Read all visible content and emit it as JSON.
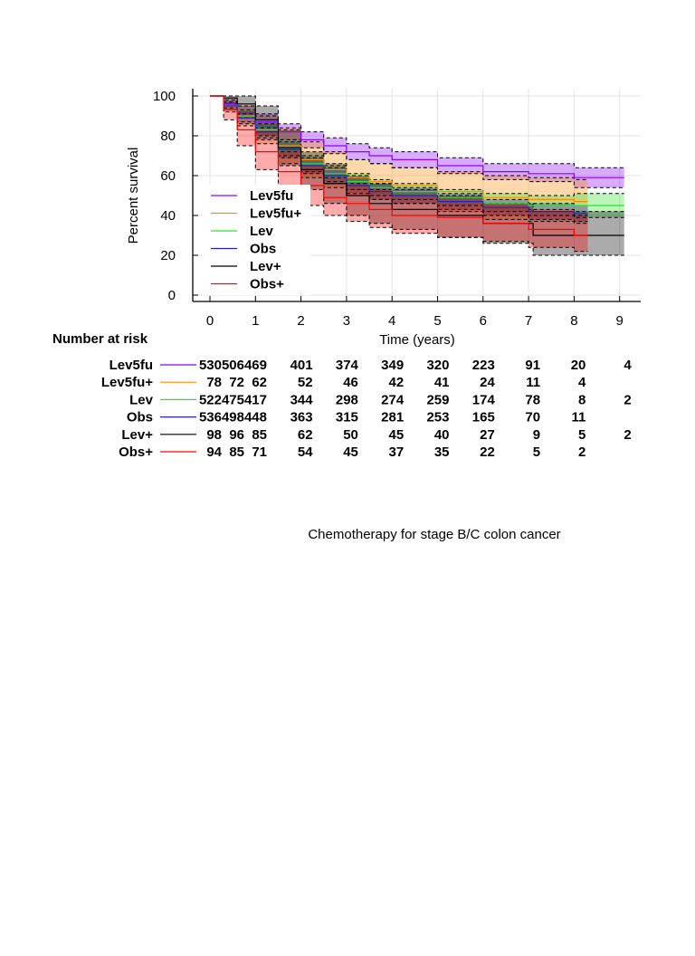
{
  "caption": "Chemotherapy for stage B/C colon cancer",
  "chart_data": {
    "type": "line",
    "subtype": "kaplan-meier",
    "xlabel": "Time (years)",
    "ylabel": "Percent survival",
    "xlim": [
      0,
      9
    ],
    "ylim": [
      0,
      100
    ],
    "x_ticks": [
      0,
      1,
      2,
      3,
      4,
      5,
      6,
      7,
      8,
      9
    ],
    "y_ticks": [
      0,
      20,
      40,
      60,
      80,
      100
    ],
    "grid": true,
    "legend_position": "lower-left",
    "series": [
      {
        "name": "Lev5fu",
        "color": "#8b00ff",
        "times": [
          0,
          0.3,
          0.6,
          1,
          1.5,
          2,
          2.5,
          3,
          3.5,
          4,
          5,
          6,
          7,
          8,
          9.1
        ],
        "values": [
          100,
          96,
          92,
          87,
          82,
          78,
          75,
          72,
          70,
          68,
          65,
          62,
          61,
          59,
          59
        ],
        "lower": [
          100,
          94,
          89,
          84,
          78,
          74,
          71,
          68,
          66,
          64,
          61,
          58,
          57,
          54,
          54
        ],
        "upper": [
          100,
          98,
          95,
          91,
          86,
          82,
          79,
          76,
          74,
          72,
          69,
          66,
          66,
          64,
          64
        ]
      },
      {
        "name": "Lev5fu+",
        "color": "#ff8c00",
        "times": [
          0,
          0.3,
          0.6,
          1,
          1.5,
          2,
          2.5,
          3,
          3.5,
          4,
          5,
          6,
          7,
          8,
          8.3
        ],
        "values": [
          100,
          95,
          90,
          83,
          75,
          68,
          63,
          59,
          57,
          55,
          52,
          49,
          48,
          47,
          47
        ],
        "lower": [
          100,
          92,
          85,
          76,
          66,
          59,
          54,
          50,
          48,
          46,
          42,
          38,
          37,
          36,
          36
        ],
        "upper": [
          100,
          99,
          95,
          90,
          84,
          77,
          72,
          68,
          66,
          64,
          62,
          60,
          59,
          58,
          58
        ]
      },
      {
        "name": "Lev",
        "color": "#33dd33",
        "times": [
          0,
          0.3,
          0.6,
          1,
          1.5,
          2,
          2.5,
          3,
          3.5,
          4,
          5,
          6,
          7,
          8,
          9.1
        ],
        "values": [
          100,
          95,
          90,
          83,
          74,
          66,
          61,
          57,
          54,
          52,
          49,
          46,
          45,
          45,
          45
        ],
        "lower": [
          100,
          93,
          87,
          79,
          70,
          62,
          57,
          53,
          50,
          48,
          45,
          42,
          40,
          39,
          39
        ],
        "upper": [
          100,
          97,
          93,
          87,
          78,
          70,
          65,
          61,
          58,
          56,
          53,
          51,
          50,
          51,
          51
        ]
      },
      {
        "name": "Obs",
        "color": "#2222cc",
        "times": [
          0,
          0.3,
          0.6,
          1,
          1.5,
          2,
          2.5,
          3,
          3.5,
          4,
          5,
          6,
          7,
          8,
          8.3
        ],
        "values": [
          100,
          95,
          89,
          82,
          73,
          65,
          60,
          55,
          52,
          50,
          47,
          44,
          42,
          41,
          41
        ],
        "lower": [
          100,
          93,
          86,
          78,
          69,
          61,
          56,
          51,
          48,
          46,
          43,
          40,
          38,
          37,
          37
        ],
        "upper": [
          100,
          97,
          92,
          86,
          77,
          69,
          64,
          59,
          56,
          54,
          51,
          48,
          46,
          45,
          45
        ]
      },
      {
        "name": "Lev+",
        "color": "#000000",
        "times": [
          0,
          0.3,
          0.6,
          1,
          1.5,
          2,
          2.5,
          3,
          3.5,
          4,
          5,
          6,
          7.1,
          8,
          9.1
        ],
        "values": [
          100,
          99,
          96,
          88,
          74,
          63,
          56,
          50,
          46,
          43,
          40,
          36,
          30,
          30,
          30
        ],
        "lower": [
          100,
          96,
          90,
          80,
          65,
          53,
          46,
          40,
          36,
          33,
          29,
          26,
          20,
          20,
          20
        ],
        "upper": [
          100,
          100,
          100,
          95,
          83,
          72,
          66,
          60,
          56,
          53,
          50,
          46,
          42,
          42,
          42
        ]
      },
      {
        "name": "Obs+",
        "color": "#ff0000",
        "times": [
          0,
          0.3,
          0.6,
          1,
          1.5,
          2,
          2.5,
          3,
          3.5,
          4,
          5,
          6,
          7,
          8,
          8.3
        ],
        "values": [
          100,
          93,
          83,
          72,
          62,
          55,
          49,
          46,
          43,
          40,
          39,
          36,
          33,
          30,
          30
        ],
        "lower": [
          100,
          88,
          75,
          63,
          53,
          45,
          40,
          37,
          34,
          31,
          29,
          27,
          24,
          22,
          22
        ],
        "upper": [
          100,
          97,
          91,
          82,
          72,
          65,
          59,
          56,
          53,
          50,
          49,
          46,
          43,
          40,
          40
        ]
      }
    ]
  },
  "risk_table": {
    "title": "Number at risk",
    "times": [
      0,
      0.5,
      1,
      2,
      3,
      4,
      5,
      6,
      7,
      8,
      9
    ],
    "rows": [
      {
        "name": "Lev5fu",
        "color": "#8b00ff",
        "counts": [
          "530",
          "506",
          "469",
          "401",
          "374",
          "349",
          "320",
          "223",
          "91",
          "20",
          "4"
        ]
      },
      {
        "name": "Lev5fu+",
        "color": "#ff8c00",
        "counts": [
          "78",
          "72",
          "62",
          "52",
          "46",
          "42",
          "41",
          "24",
          "11",
          "4",
          ""
        ]
      },
      {
        "name": "Lev",
        "color": "#33dd33",
        "counts": [
          "522",
          "475",
          "417",
          "344",
          "298",
          "274",
          "259",
          "174",
          "78",
          "8",
          "2"
        ]
      },
      {
        "name": "Obs",
        "color": "#2222cc",
        "counts": [
          "536",
          "498",
          "448",
          "363",
          "315",
          "281",
          "253",
          "165",
          "70",
          "11",
          ""
        ]
      },
      {
        "name": "Lev+",
        "color": "#000000",
        "counts": [
          "98",
          "96",
          "85",
          "62",
          "50",
          "45",
          "40",
          "27",
          "9",
          "5",
          "2"
        ]
      },
      {
        "name": "Obs+",
        "color": "#ff0000",
        "counts": [
          "94",
          "85",
          "71",
          "54",
          "45",
          "37",
          "35",
          "22",
          "5",
          "2",
          ""
        ]
      }
    ]
  }
}
